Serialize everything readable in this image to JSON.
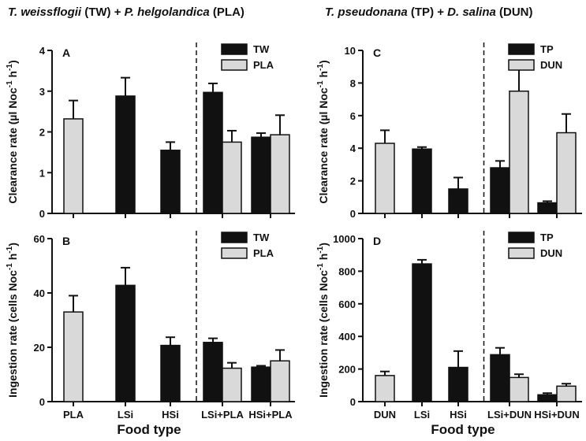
{
  "titles": {
    "left": [
      {
        "text": "T. weissflogii",
        "italic": true
      },
      {
        "text": " (TW) + ",
        "italic": false
      },
      {
        "text": "P. helgolandica",
        "italic": true
      },
      {
        "text": " (PLA)",
        "italic": false
      }
    ],
    "right": [
      {
        "text": "T. pseudonana",
        "italic": true
      },
      {
        "text": " (TP) + ",
        "italic": false
      },
      {
        "text": "D. salina",
        "italic": true
      },
      {
        "text": " (DUN)",
        "italic": false
      }
    ]
  },
  "colors": {
    "dark": "#111111",
    "light": "#d9d9d9"
  },
  "xlabel": "Food type",
  "chart_data": [
    {
      "id": "A",
      "type": "bar",
      "categories": [
        "PLA",
        "LSi",
        "HSi",
        "LSi+PLA",
        "HSi+PLA"
      ],
      "show_categories": false,
      "ylabel": "Clearance rate (µl Noc-1 h-1)",
      "ylabel_parts": [
        "Clearance rate (µl Noc",
        "-1",
        " h",
        "-1",
        ")"
      ],
      "ylim": [
        0,
        4
      ],
      "yticks": [
        0,
        1,
        2,
        3,
        4
      ],
      "legend": [
        "TW",
        "PLA"
      ],
      "legend_position": "top-right",
      "divider_after": 2,
      "bars": [
        {
          "cat": 0,
          "slot": "single",
          "series": "PLA",
          "value": 2.32,
          "error": 0.45
        },
        {
          "cat": 1,
          "slot": "single",
          "series": "TW",
          "value": 2.88,
          "error": 0.45
        },
        {
          "cat": 2,
          "slot": "single",
          "series": "TW",
          "value": 1.55,
          "error": 0.2
        },
        {
          "cat": 3,
          "slot": "left",
          "series": "TW",
          "value": 2.97,
          "error": 0.22
        },
        {
          "cat": 3,
          "slot": "right",
          "series": "PLA",
          "value": 1.75,
          "error": 0.28
        },
        {
          "cat": 4,
          "slot": "left",
          "series": "TW",
          "value": 1.87,
          "error": 0.1
        },
        {
          "cat": 4,
          "slot": "right",
          "series": "PLA",
          "value": 1.93,
          "error": 0.48
        }
      ]
    },
    {
      "id": "B",
      "type": "bar",
      "categories": [
        "PLA",
        "LSi",
        "HSi",
        "LSi+PLA",
        "HSi+PLA"
      ],
      "show_categories": true,
      "ylabel": "Ingestion rate (cells Noc-1 h-1)",
      "ylabel_parts": [
        "Ingestion rate (cells Noc",
        "-1",
        " h",
        "-1",
        ")"
      ],
      "ylim": [
        0,
        60
      ],
      "yticks": [
        0,
        20,
        40,
        60
      ],
      "legend": [
        "TW",
        "PLA"
      ],
      "legend_position": "top-right",
      "divider_after": 2,
      "bars": [
        {
          "cat": 0,
          "slot": "single",
          "series": "PLA",
          "value": 33,
          "error": 6
        },
        {
          "cat": 1,
          "slot": "single",
          "series": "TW",
          "value": 42.8,
          "error": 6.5
        },
        {
          "cat": 2,
          "slot": "single",
          "series": "TW",
          "value": 20.7,
          "error": 3
        },
        {
          "cat": 3,
          "slot": "left",
          "series": "TW",
          "value": 21.8,
          "error": 1.5
        },
        {
          "cat": 3,
          "slot": "right",
          "series": "PLA",
          "value": 12.3,
          "error": 2
        },
        {
          "cat": 4,
          "slot": "left",
          "series": "TW",
          "value": 12.7,
          "error": 0.5
        },
        {
          "cat": 4,
          "slot": "right",
          "series": "PLA",
          "value": 15,
          "error": 4
        }
      ]
    },
    {
      "id": "C",
      "type": "bar",
      "categories": [
        "DUN",
        "LSi",
        "HSi",
        "LSi+DUN",
        "HSi+DUN"
      ],
      "show_categories": false,
      "ylabel": "Clearance rate (µl Noc-1 h-1)",
      "ylabel_parts": [
        "Clearance rate (µl Noc",
        "-1",
        " h",
        "-1",
        ")"
      ],
      "ylim": [
        0,
        10
      ],
      "yticks": [
        0,
        2,
        4,
        6,
        8,
        10
      ],
      "legend": [
        "TP",
        "DUN"
      ],
      "legend_position": "top-right",
      "divider_after": 2,
      "bars": [
        {
          "cat": 0,
          "slot": "single",
          "series": "DUN",
          "value": 4.3,
          "error": 0.8
        },
        {
          "cat": 1,
          "slot": "single",
          "series": "TP",
          "value": 3.95,
          "error": 0.12
        },
        {
          "cat": 2,
          "slot": "single",
          "series": "TP",
          "value": 1.5,
          "error": 0.7
        },
        {
          "cat": 3,
          "slot": "left",
          "series": "TP",
          "value": 2.8,
          "error": 0.42
        },
        {
          "cat": 3,
          "slot": "right",
          "series": "DUN",
          "value": 7.5,
          "error": 1.45
        },
        {
          "cat": 4,
          "slot": "left",
          "series": "TP",
          "value": 0.65,
          "error": 0.1
        },
        {
          "cat": 4,
          "slot": "right",
          "series": "DUN",
          "value": 4.95,
          "error": 1.15
        }
      ]
    },
    {
      "id": "D",
      "type": "bar",
      "categories": [
        "DUN",
        "LSi",
        "HSi",
        "LSi+DUN",
        "HSi+DUN"
      ],
      "show_categories": true,
      "ylabel": "Ingestion rate (cells Noc-1 h-1)",
      "ylabel_parts": [
        "Ingestion rate (cells Noc",
        "-1",
        " h",
        "-1",
        ")"
      ],
      "ylim": [
        0,
        1000
      ],
      "yticks": [
        0,
        200,
        400,
        600,
        800,
        1000
      ],
      "legend": [
        "TP",
        "DUN"
      ],
      "legend_position": "top-right",
      "divider_after": 2,
      "bars": [
        {
          "cat": 0,
          "slot": "single",
          "series": "DUN",
          "value": 160,
          "error": 25
        },
        {
          "cat": 1,
          "slot": "single",
          "series": "TP",
          "value": 845,
          "error": 25
        },
        {
          "cat": 2,
          "slot": "single",
          "series": "TP",
          "value": 210,
          "error": 100
        },
        {
          "cat": 3,
          "slot": "left",
          "series": "TP",
          "value": 288,
          "error": 42
        },
        {
          "cat": 3,
          "slot": "right",
          "series": "DUN",
          "value": 148,
          "error": 20
        },
        {
          "cat": 4,
          "slot": "left",
          "series": "TP",
          "value": 42,
          "error": 10
        },
        {
          "cat": 4,
          "slot": "right",
          "series": "DUN",
          "value": 95,
          "error": 15
        }
      ]
    }
  ]
}
